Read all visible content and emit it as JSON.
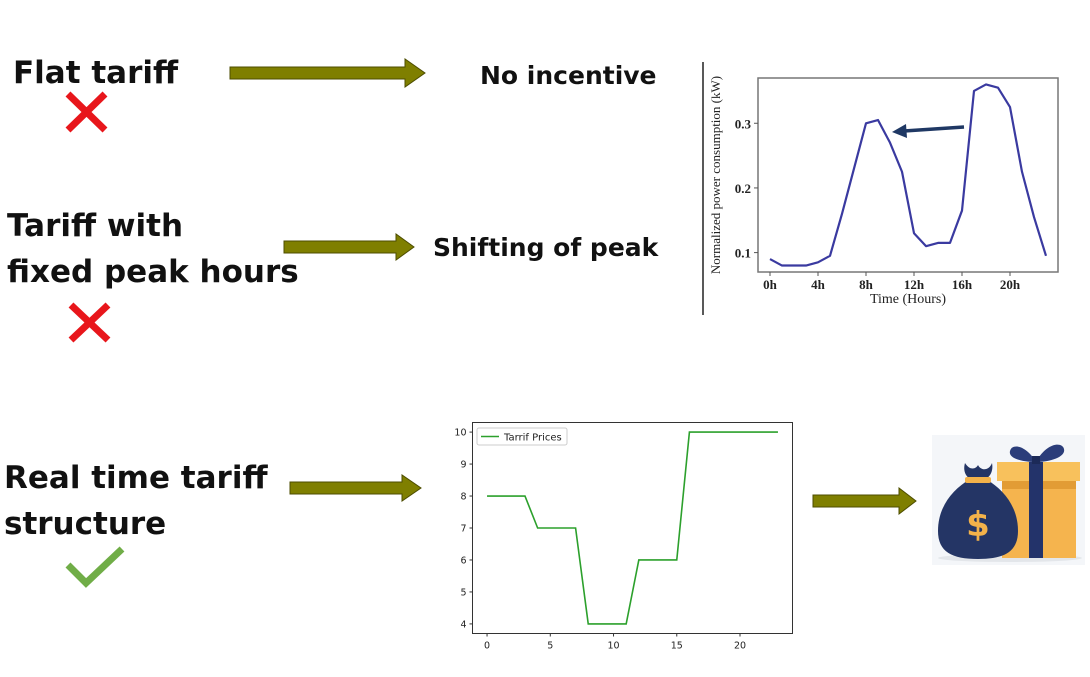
{
  "rows": [
    {
      "label_lines": [
        "Flat tariff"
      ],
      "outcome": "No incentive",
      "verdict": "cross"
    },
    {
      "label_lines": [
        "Tariff with",
        "fixed peak hours"
      ],
      "outcome": "Shifting of peak",
      "verdict": "cross"
    },
    {
      "label_lines": [
        "Real time tariff",
        "structure"
      ],
      "verdict": "check"
    }
  ],
  "colors": {
    "arrow": "#7f7f00",
    "arrow_edge": "#4d4d00",
    "cross": "#e8161b",
    "check": "#70ad47",
    "consumption_line": "#3a3aa0",
    "tariff_line": "#2ca02c",
    "pointer_arrow": "#1f3864"
  },
  "icons": {
    "reward": "money-bag-and-gift-icon"
  },
  "chart_data": [
    {
      "type": "line",
      "ylabel": "Normalized power consumption (kW)",
      "xlabel": "Time (Hours)",
      "x_tick_labels": [
        "0h",
        "4h",
        "8h",
        "12h",
        "16h",
        "20h"
      ],
      "x_ticks": [
        0,
        4,
        8,
        12,
        16,
        20
      ],
      "y_ticks": [
        0.1,
        0.2,
        0.3
      ],
      "y_tick_labels": [
        "0.1",
        "0.2",
        "0.3"
      ],
      "xlim": [
        -1,
        24
      ],
      "ylim": [
        0.07,
        0.37
      ],
      "x": [
        0,
        1,
        2,
        3,
        4,
        5,
        6,
        7,
        8,
        9,
        10,
        11,
        12,
        13,
        14,
        15,
        16,
        17,
        18,
        19,
        20,
        21,
        22,
        23
      ],
      "values": [
        0.09,
        0.08,
        0.08,
        0.08,
        0.085,
        0.095,
        0.16,
        0.23,
        0.3,
        0.305,
        0.27,
        0.225,
        0.13,
        0.11,
        0.115,
        0.115,
        0.165,
        0.35,
        0.36,
        0.355,
        0.325,
        0.225,
        0.155,
        0.095
      ],
      "annotation": "arrow pointing from the evening peak toward the morning peak"
    },
    {
      "type": "line",
      "series": [
        {
          "name": "Tarrif Prices",
          "values": [
            8,
            8,
            8,
            8,
            7,
            7,
            7,
            7,
            4,
            4,
            4,
            4,
            6,
            6,
            6,
            6,
            10,
            10,
            10,
            10,
            10,
            10,
            10,
            10
          ]
        }
      ],
      "x": [
        0,
        1,
        2,
        3,
        4,
        5,
        6,
        7,
        8,
        9,
        10,
        11,
        12,
        13,
        14,
        15,
        16,
        17,
        18,
        19,
        20,
        21,
        22,
        23
      ],
      "x_ticks": [
        0,
        5,
        10,
        15,
        20
      ],
      "y_ticks": [
        4,
        5,
        6,
        7,
        8,
        9,
        10
      ],
      "xlim": [
        -1.15,
        24.15
      ],
      "ylim": [
        3.7,
        10.3
      ],
      "legend_position": "top-left"
    }
  ]
}
